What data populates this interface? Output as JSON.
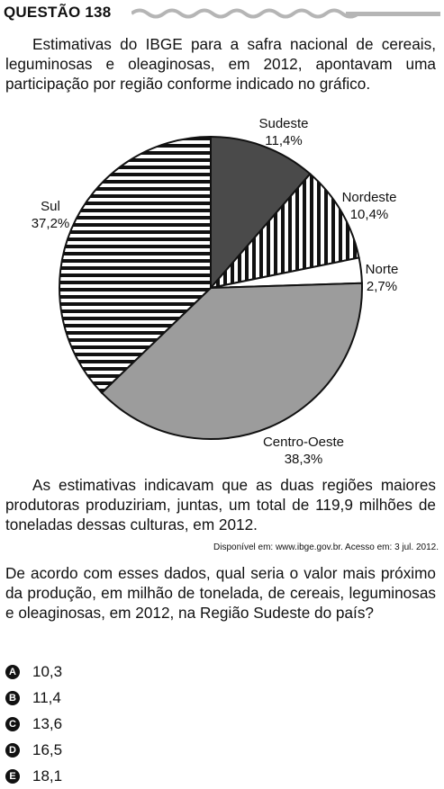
{
  "question": {
    "title": "QUESTÃO 138",
    "intro": "Estimativas do IBGE para a safra nacional de cereais, leguminosas e oleaginosas, em 2012, apontavam uma participação por região conforme indicado no gráfico.",
    "after_chart": "As estimativas indicavam que as duas regiões maiores produtoras produziriam, juntas, um total de 119,9 milhões de toneladas dessas culturas, em 2012.",
    "source": "Disponível em: www.ibge.gov.br. Acesso em: 3 jul. 2012.",
    "prompt": "De acordo com esses dados, qual seria o valor mais próximo da produção, em milhão de tonelada, de cereais, leguminosas e oleaginosas, em 2012, na Região Sudeste do país?",
    "options": [
      {
        "letter": "A",
        "text": "10,3"
      },
      {
        "letter": "B",
        "text": "11,4"
      },
      {
        "letter": "C",
        "text": "13,6"
      },
      {
        "letter": "D",
        "text": "16,5"
      },
      {
        "letter": "E",
        "text": "18,1"
      }
    ]
  },
  "chart_data": {
    "type": "pie",
    "slices": [
      {
        "label": "Sudeste",
        "value": 11.4,
        "value_label": "11,4%",
        "fill": "dark-gray"
      },
      {
        "label": "Nordeste",
        "value": 10.4,
        "value_label": "10,4%",
        "fill": "vertical-stripes"
      },
      {
        "label": "Norte",
        "value": 2.7,
        "value_label": "2,7%",
        "fill": "white"
      },
      {
        "label": "Centro-Oeste",
        "value": 38.3,
        "value_label": "38,3%",
        "fill": "light-gray"
      },
      {
        "label": "Sul",
        "value": 37.2,
        "value_label": "37,2%",
        "fill": "horizontal-stripes"
      }
    ],
    "colors": {
      "dark-gray": "#4a4a4a",
      "light-gray": "#9c9c9c",
      "white": "#ffffff"
    }
  }
}
